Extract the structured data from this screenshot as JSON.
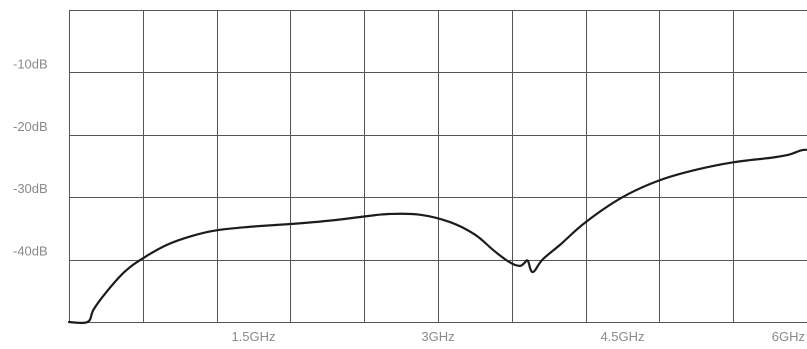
{
  "chart_data": {
    "type": "line",
    "title": "",
    "xlabel": "",
    "ylabel": "",
    "xlim": [
      0,
      6
    ],
    "ylim": [
      -50,
      0
    ],
    "x_unit": "GHz",
    "y_unit": "dB",
    "grid": true,
    "line_color": "#1c1c1c",
    "grid_color": "#555555",
    "label_color": "#8a8a8a",
    "x_ticks": [
      {
        "value": 1.5,
        "label": "1.5GHz"
      },
      {
        "value": 3,
        "label": "3GHz"
      },
      {
        "value": 4.5,
        "label": "4.5GHz"
      },
      {
        "value": 6,
        "label": "6GHz"
      }
    ],
    "y_ticks": [
      {
        "value": -10,
        "label": "-10dB"
      },
      {
        "value": -20,
        "label": "-20dB"
      },
      {
        "value": -30,
        "label": "-30dB"
      },
      {
        "value": -40,
        "label": "-40dB"
      }
    ],
    "x_gridlines": [
      0,
      0.6,
      1.2,
      1.8,
      2.4,
      3.0,
      3.6,
      4.2,
      4.8,
      5.4,
      6.0
    ],
    "y_gridlines": [
      0,
      -10,
      -20,
      -30,
      -40,
      -50
    ],
    "series": [
      {
        "x": [
          0,
          0.15,
          0.2,
          0.3,
          0.45,
          0.6,
          0.8,
          1.0,
          1.2,
          1.5,
          1.8,
          2.1,
          2.4,
          2.6,
          2.85,
          3.1,
          3.3,
          3.45,
          3.55,
          3.62,
          3.67,
          3.7,
          3.73,
          3.77,
          3.85,
          4.0,
          4.2,
          4.5,
          4.8,
          5.1,
          5.4,
          5.7,
          5.85,
          5.95,
          6.0
        ],
        "y": [
          -50,
          -50,
          -48,
          -45.3,
          -42,
          -39.8,
          -37.6,
          -36.2,
          -35.3,
          -34.7,
          -34.3,
          -33.8,
          -33.1,
          -32.7,
          -32.8,
          -34,
          -36,
          -38.5,
          -40,
          -40.8,
          -41,
          -40.6,
          -40.2,
          -42,
          -40,
          -37.5,
          -34,
          -30,
          -27.3,
          -25.6,
          -24.4,
          -23.7,
          -23.2,
          -22.5,
          -22.4
        ]
      }
    ]
  }
}
